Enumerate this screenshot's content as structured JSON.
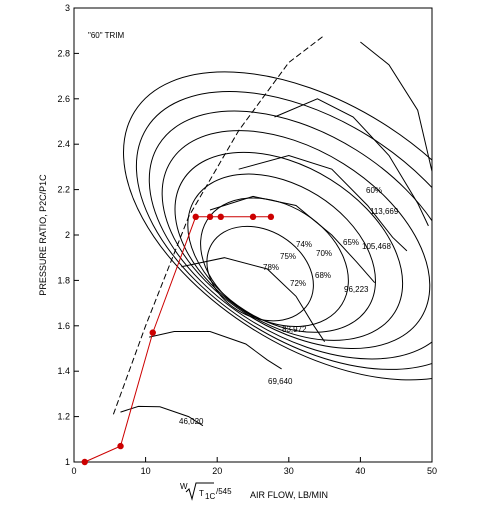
{
  "chart_data": {
    "type": "line",
    "title": "",
    "trim_label": "\"60\" TRIM",
    "xlabel": "AIR FLOW, LB/MIN",
    "xlabel_formula": {
      "prefix": "W",
      "radicand_sub": "1C",
      "radicand_main": "T",
      "divisor": "/545"
    },
    "ylabel": "PRESSURE RATIO, P2C/P1C",
    "xlim": [
      0,
      50
    ],
    "ylim": [
      1,
      3
    ],
    "xticks": [
      "0",
      "10",
      "20",
      "30",
      "40",
      "50"
    ],
    "yticks": [
      "1",
      "1.2",
      "1.4",
      "1.6",
      "1.8",
      "2",
      "2.2",
      "2.4",
      "2.6",
      "2.8",
      "3"
    ],
    "grid": false,
    "colors": {
      "axis": "#000000",
      "map_lines": "#000000",
      "operating_line": "#cc0000"
    },
    "efficiency_labels": [
      "78%",
      "75%",
      "74%",
      "72%",
      "70%",
      "68%",
      "65%",
      "60%"
    ],
    "speed_labels": [
      "46,020",
      "69,640",
      "83,972",
      "96,223",
      "105,468",
      "113,669"
    ],
    "speed_lines": [
      {
        "label": "46,020",
        "points": [
          [
            6.5,
            1.22
          ],
          [
            9,
            1.245
          ],
          [
            12,
            1.243
          ],
          [
            16,
            1.2
          ],
          [
            18,
            1.16
          ]
        ]
      },
      {
        "label": "69,640",
        "points": [
          [
            10.5,
            1.55
          ],
          [
            14,
            1.575
          ],
          [
            19,
            1.575
          ],
          [
            24,
            1.52
          ],
          [
            27,
            1.45
          ],
          [
            29,
            1.41
          ]
        ]
      },
      {
        "label": "83,972",
        "points": [
          [
            15,
            1.86
          ],
          [
            21,
            1.9
          ],
          [
            27,
            1.85
          ],
          [
            31,
            1.73
          ],
          [
            33.5,
            1.6
          ],
          [
            35,
            1.53
          ]
        ]
      },
      {
        "label": "96,223",
        "points": [
          [
            19,
            2.11
          ],
          [
            25,
            2.17
          ],
          [
            31,
            2.13
          ],
          [
            36,
            2.0
          ],
          [
            39.5,
            1.88
          ],
          [
            42,
            1.79
          ]
        ]
      },
      {
        "label": "105,468",
        "points": [
          [
            23,
            2.29
          ],
          [
            30,
            2.35
          ],
          [
            36,
            2.29
          ],
          [
            41,
            2.13
          ],
          [
            44.5,
            1.99
          ],
          [
            46.5,
            1.93
          ]
        ]
      },
      {
        "label": "113,669",
        "points": [
          [
            28,
            2.52
          ],
          [
            34,
            2.6
          ],
          [
            39,
            2.52
          ],
          [
            44,
            2.35
          ],
          [
            48,
            2.14
          ],
          [
            49.5,
            2.04
          ]
        ]
      }
    ],
    "surge_line": [
      [
        5.5,
        1.21
      ],
      [
        10,
        1.6
      ],
      [
        16,
        2.08
      ],
      [
        23,
        2.46
      ],
      [
        30,
        2.76
      ],
      [
        35,
        2.88
      ]
    ],
    "choke_line": [
      [
        40,
        2.85
      ],
      [
        44,
        2.75
      ],
      [
        48,
        2.55
      ],
      [
        50,
        2.28
      ],
      [
        50,
        1.8
      ]
    ],
    "efficiency_islands": [
      {
        "label": "78%",
        "cx": 26,
        "cy": 1.83,
        "rx": 6.0,
        "ry": 0.25
      },
      {
        "label": "75%",
        "cx": 28,
        "cy": 1.88,
        "rx": 8.0,
        "ry": 0.35
      },
      {
        "label": "74%",
        "cx": 29,
        "cy": 1.92,
        "rx": 9.5,
        "ry": 0.45
      },
      {
        "label": "72%",
        "cx": 30,
        "cy": 1.95,
        "rx": 11.0,
        "ry": 0.55
      },
      {
        "label": "70%",
        "cx": 31,
        "cy": 1.98,
        "rx": 12.5,
        "ry": 0.65
      },
      {
        "label": "68%",
        "cx": 32,
        "cy": 2.0,
        "rx": 14.0,
        "ry": 0.75
      },
      {
        "label": "65%",
        "cx": 33,
        "cy": 2.02,
        "rx": 15.5,
        "ry": 0.85
      },
      {
        "label": "60%",
        "cx": 34,
        "cy": 2.04,
        "rx": 17.0,
        "ry": 0.95
      }
    ],
    "operating_points": {
      "x": [
        1.5,
        6.5,
        11,
        17,
        19,
        20.5,
        25,
        27.5
      ],
      "y": [
        1.0,
        1.07,
        1.57,
        2.08,
        2.08,
        2.08,
        2.08,
        2.08
      ]
    }
  }
}
